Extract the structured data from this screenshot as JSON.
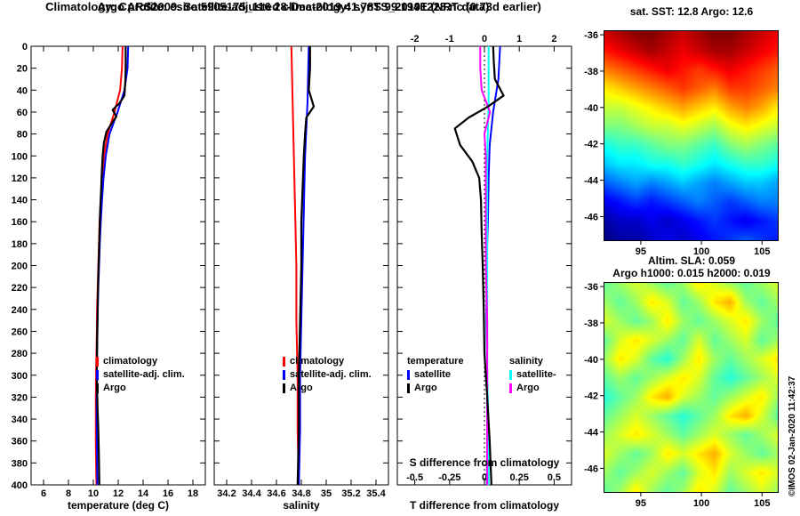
{
  "titles": {
    "line1": "Argo profile: csiro 5905175_116 28-Dec-2019 41.78S 99.194E (NRT data)",
    "line2": "Climatology: CARS2009. Satellite-adjusted climatology: synTS_20191228.nc (0.73d earlier)"
  },
  "watermark": "©IMOS 02-Jan-2020 11:42:37",
  "chart_data": [
    {
      "id": "temperature_profile",
      "type": "line",
      "xlabel": "temperature (deg C)",
      "xlim": [
        5,
        19
      ],
      "xticks": [
        6,
        8,
        10,
        12,
        14,
        16,
        18
      ],
      "xtick_labels": [
        "6",
        "8",
        "10",
        "12",
        "14",
        "16",
        "18"
      ],
      "ylim": [
        0,
        400
      ],
      "yticks": [
        0,
        20,
        40,
        60,
        80,
        100,
        120,
        140,
        160,
        180,
        200,
        220,
        240,
        260,
        280,
        300,
        320,
        340,
        360,
        380,
        400
      ],
      "series": [
        {
          "name": "climatology",
          "color": "#ff0000",
          "depth": [
            0,
            20,
            40,
            60,
            80,
            100,
            120,
            140,
            160,
            180,
            200,
            220,
            240,
            260,
            280,
            300,
            320,
            340,
            360,
            380,
            400
          ],
          "values": [
            12.35,
            12.3,
            12.15,
            11.7,
            11.15,
            10.85,
            10.7,
            10.6,
            10.5,
            10.45,
            10.4,
            10.35,
            10.3,
            10.28,
            10.25,
            10.22,
            10.2,
            10.2,
            10.2,
            10.22,
            10.25
          ]
        },
        {
          "name": "satellite-adj. clim.",
          "color": "#0000ff",
          "depth": [
            0,
            20,
            40,
            60,
            80,
            100,
            120,
            140,
            160,
            180,
            200,
            220,
            240,
            260,
            280,
            300,
            320,
            340,
            360,
            380,
            400
          ],
          "values": [
            12.8,
            12.75,
            12.5,
            11.95,
            11.3,
            11.0,
            10.82,
            10.7,
            10.6,
            10.52,
            10.46,
            10.4,
            10.36,
            10.33,
            10.3,
            10.28,
            10.27,
            10.27,
            10.28,
            10.3,
            10.32
          ]
        },
        {
          "name": "Argo",
          "color": "#000000",
          "depth": [
            0,
            15,
            30,
            45,
            52,
            58,
            64,
            70,
            78,
            88,
            100,
            115,
            130,
            150,
            170,
            190,
            210,
            230,
            250,
            270,
            290,
            310,
            330,
            350,
            370,
            390,
            400
          ],
          "values": [
            12.6,
            12.6,
            12.58,
            12.5,
            12.1,
            11.55,
            11.85,
            11.5,
            11.05,
            10.85,
            10.75,
            10.68,
            10.63,
            10.55,
            10.5,
            10.45,
            10.4,
            10.36,
            10.33,
            10.3,
            10.28,
            10.3,
            10.34,
            10.4,
            10.44,
            10.47,
            10.48
          ]
        }
      ]
    },
    {
      "id": "salinity_profile",
      "type": "line",
      "xlabel": "salinity",
      "xlim": [
        34.1,
        35.5
      ],
      "xticks": [
        34.2,
        34.4,
        34.6,
        34.8,
        35,
        35.2,
        35.4
      ],
      "xtick_labels": [
        "34.2",
        "34.4",
        "34.6",
        "34.8",
        "35",
        "35.2",
        "35.4"
      ],
      "ylim": [
        0,
        400
      ],
      "yticks": [
        0,
        20,
        40,
        60,
        80,
        100,
        120,
        140,
        160,
        180,
        200,
        220,
        240,
        260,
        280,
        300,
        320,
        340,
        360,
        380,
        400
      ],
      "series": [
        {
          "name": "climatology",
          "color": "#ff0000",
          "depth": [
            0,
            50,
            100,
            150,
            200,
            250,
            300,
            350,
            400
          ],
          "values": [
            34.72,
            34.73,
            34.74,
            34.75,
            34.76,
            34.76,
            34.77,
            34.77,
            34.78
          ]
        },
        {
          "name": "satellite-adj. clim.",
          "color": "#0000ff",
          "depth": [
            0,
            50,
            100,
            150,
            200,
            250,
            300,
            350,
            400
          ],
          "values": [
            34.86,
            34.85,
            34.83,
            34.82,
            34.81,
            34.8,
            34.79,
            34.79,
            34.78
          ]
        },
        {
          "name": "Argo",
          "color": "#000000",
          "depth": [
            0,
            20,
            40,
            55,
            65,
            80,
            100,
            130,
            160,
            200,
            250,
            300,
            350,
            400
          ],
          "values": [
            34.87,
            34.87,
            34.86,
            34.9,
            34.84,
            34.83,
            34.82,
            34.81,
            34.8,
            34.8,
            34.79,
            34.78,
            34.78,
            34.77
          ]
        }
      ]
    },
    {
      "id": "difference_profile",
      "type": "line",
      "top_axis": true,
      "xlabel": "T difference from climatology",
      "x2label": "S difference from climatology",
      "xlim": [
        -2.5,
        2.5
      ],
      "xticks": [
        -2,
        -1,
        0,
        1,
        2
      ],
      "xtick_labels": [
        "-2",
        "-1",
        "0",
        "1",
        "2"
      ],
      "x2lim": [
        -0.625,
        0.625
      ],
      "x2ticks": [
        -0.5,
        -0.25,
        0,
        0.25,
        0.5
      ],
      "x2tick_labels": [
        "-0.5",
        "-0.25",
        "0",
        "0.25",
        "0.5"
      ],
      "ylim": [
        0,
        400
      ],
      "yticks": [
        0,
        20,
        40,
        60,
        80,
        100,
        120,
        140,
        160,
        180,
        200,
        220,
        240,
        260,
        280,
        300,
        320,
        340,
        360,
        380,
        400
      ],
      "series": [
        {
          "name": "satellite",
          "group": "temperature",
          "axis": "t",
          "color": "#0000ff",
          "depth": [
            0,
            30,
            60,
            90,
            120,
            160,
            200,
            250,
            300,
            350,
            400
          ],
          "values": [
            0.45,
            0.4,
            0.25,
            0.15,
            0.12,
            0.1,
            0.06,
            0.06,
            0.08,
            0.08,
            0.07
          ]
        },
        {
          "name": "satellite-",
          "group": "salinity",
          "axis": "s",
          "color": "#00ffff",
          "depth": [
            0,
            50,
            100,
            150,
            200,
            250,
            300,
            350,
            400
          ],
          "values": [
            0.03,
            0.03,
            0.02,
            0.02,
            0.02,
            0.02,
            0.02,
            0.03,
            0.03
          ]
        },
        {
          "name": "Argo",
          "group": "salinity",
          "axis": "s",
          "color": "#ff00ff",
          "depth": [
            0,
            20,
            40,
            60,
            80,
            100,
            150,
            200,
            250,
            300,
            350,
            400
          ],
          "values": [
            -0.03,
            -0.03,
            -0.02,
            0.04,
            0.0,
            0.01,
            0.01,
            0.01,
            0.02,
            0.02,
            0.02,
            0.02
          ]
        },
        {
          "name": "Argo",
          "group": "temperature",
          "axis": "t",
          "color": "#000000",
          "depth": [
            0,
            15,
            30,
            45,
            55,
            65,
            75,
            90,
            105,
            120,
            140,
            170,
            200,
            240,
            280,
            320,
            360,
            400
          ],
          "values": [
            0.25,
            0.27,
            0.3,
            0.55,
            0.1,
            -0.45,
            -0.85,
            -0.7,
            -0.35,
            -0.15,
            -0.1,
            -0.08,
            -0.05,
            -0.02,
            0.0,
            0.08,
            0.15,
            0.2
          ]
        }
      ],
      "legend_columns": [
        {
          "header": "temperature",
          "items": [
            {
              "label": "satellite",
              "color": "#0000ff"
            },
            {
              "label": "Argo",
              "color": "#000000"
            }
          ]
        },
        {
          "header": "salinity",
          "items": [
            {
              "label": "satellite-",
              "color": "#00ffff"
            },
            {
              "label": "Argo",
              "color": "#ff00ff"
            }
          ]
        }
      ]
    },
    {
      "id": "sst_map",
      "type": "heatmap",
      "title": "sat. SST: 12.8 Argo: 12.6",
      "colormap": "jet",
      "vmin": 5,
      "vmax": 19,
      "lon_range": [
        92,
        106.3
      ],
      "lat_range": [
        -35.8,
        -47.3
      ],
      "xticks": [
        95,
        100,
        105
      ],
      "yticks": [
        -36,
        -38,
        -40,
        -42,
        -44,
        -46
      ],
      "grid": [
        [
          18,
          18.5,
          19,
          19,
          18.5,
          18,
          18.5,
          19,
          19,
          18.5,
          18,
          17.5
        ],
        [
          17,
          17.5,
          18,
          18.5,
          18,
          17.5,
          18,
          18.5,
          18.5,
          18,
          17.5,
          17
        ],
        [
          15.5,
          16,
          16.5,
          17,
          17.5,
          17,
          16.5,
          17,
          17.5,
          17,
          16.5,
          16
        ],
        [
          14,
          14.5,
          15,
          15.5,
          16,
          16.5,
          16,
          15.5,
          16.5,
          16.5,
          16,
          15.5
        ],
        [
          13,
          13,
          13.5,
          14,
          14.5,
          15,
          14.5,
          14,
          15,
          15.5,
          15,
          14
        ],
        [
          12,
          12,
          12.5,
          13,
          13,
          13.5,
          13,
          12.5,
          13.5,
          14,
          13.5,
          13
        ],
        [
          10.5,
          11,
          11,
          11.5,
          12,
          12,
          11.5,
          11,
          12,
          12.5,
          12,
          11.5
        ],
        [
          9.5,
          10,
          10,
          10.5,
          10.5,
          11,
          10.5,
          10,
          10.5,
          11,
          11,
          10.5
        ],
        [
          8,
          8.5,
          9,
          8.5,
          9,
          9.5,
          9,
          8.5,
          9,
          9.5,
          9.5,
          9
        ],
        [
          6.5,
          7,
          7.5,
          7,
          7.5,
          8,
          8.5,
          8,
          7.5,
          8,
          8.5,
          8.5
        ],
        [
          5.5,
          6,
          6,
          6.5,
          6,
          6.5,
          7,
          7.5,
          7,
          6.5,
          7,
          7.5
        ],
        [
          5,
          5.5,
          5.5,
          6,
          6.5,
          6,
          6.5,
          7,
          7.5,
          8,
          7.5,
          7
        ]
      ]
    },
    {
      "id": "sla_map",
      "type": "heatmap",
      "title_line1": "Altim. SLA: 0.059",
      "title_line2": "Argo h1000: 0.015 h2000: 0.019",
      "colormap": "jet",
      "vmin": -0.35,
      "vmax": 0.5,
      "lon_range": [
        92,
        106.3
      ],
      "lat_range": [
        -35.8,
        -47.3
      ],
      "xticks": [
        95,
        100,
        105
      ],
      "yticks": [
        -36,
        -38,
        -40,
        -42,
        -44,
        -46
      ],
      "grid": [
        [
          0.05,
          0.1,
          0.15,
          0.1,
          0.05,
          0.1,
          0.2,
          0.15,
          0.1,
          0.05,
          0.1,
          0.15
        ],
        [
          0.1,
          0.05,
          0.1,
          0.2,
          0.15,
          0.05,
          0.1,
          0.2,
          0.25,
          0.1,
          0.05,
          0.1
        ],
        [
          0.15,
          0.1,
          0.05,
          0.1,
          0.2,
          0.1,
          0.05,
          0.1,
          0.15,
          0.2,
          0.1,
          0.05
        ],
        [
          0.05,
          0.15,
          0.2,
          0.15,
          0.1,
          0.05,
          0.15,
          0.05,
          0.1,
          0.15,
          0.05,
          0.1
        ],
        [
          0.1,
          0.2,
          0.15,
          0.05,
          0.0,
          0.1,
          0.2,
          0.1,
          0.05,
          0.1,
          0.15,
          0.2
        ],
        [
          0.05,
          0.1,
          0.05,
          0.1,
          0.15,
          0.2,
          0.15,
          0.05,
          0.0,
          0.05,
          0.1,
          0.15
        ],
        [
          0.0,
          0.05,
          0.1,
          0.2,
          0.25,
          0.15,
          0.1,
          0.05,
          0.1,
          0.15,
          0.2,
          0.1
        ],
        [
          0.05,
          0.1,
          0.15,
          0.1,
          0.05,
          0.0,
          0.05,
          0.1,
          0.2,
          0.25,
          0.15,
          0.05
        ],
        [
          0.1,
          0.15,
          0.2,
          0.15,
          0.1,
          0.05,
          0.1,
          0.15,
          0.1,
          0.05,
          0.1,
          0.15
        ],
        [
          0.15,
          0.1,
          0.05,
          0.1,
          0.2,
          0.15,
          0.2,
          0.25,
          0.15,
          0.1,
          0.05,
          0.1
        ],
        [
          0.1,
          0.05,
          0.1,
          0.15,
          0.1,
          0.05,
          0.15,
          0.2,
          0.1,
          0.15,
          0.2,
          0.15
        ],
        [
          0.05,
          0.1,
          0.2,
          0.1,
          0.05,
          0.1,
          0.2,
          0.15,
          0.05,
          0.1,
          0.15,
          0.1
        ]
      ]
    }
  ]
}
